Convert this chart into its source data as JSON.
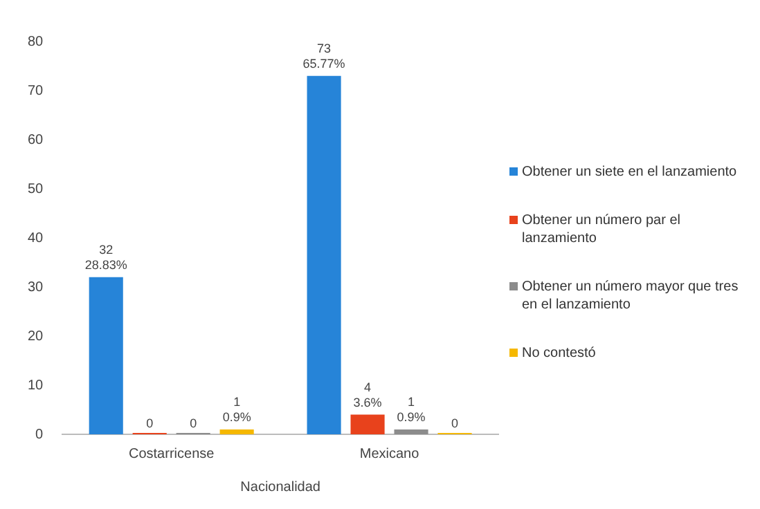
{
  "chart_data": {
    "type": "bar",
    "xlabel": "Nacionalidad",
    "categories": [
      "Costarricense",
      "Mexicano"
    ],
    "series": [
      {
        "name": "Obtener un siete en el lanzamiento",
        "color": "#2684d8",
        "values": [
          32,
          73
        ],
        "value_labels": [
          "32\n28.83%",
          "73\n65.77%"
        ]
      },
      {
        "name": "Obtener un número par el lanzamiento",
        "color": "#e8421c",
        "values": [
          0,
          4
        ],
        "value_labels": [
          "0",
          "4\n3.6%"
        ]
      },
      {
        "name": "Obtener un número mayor que tres en el lanzamiento",
        "color": "#8c8c8c",
        "values": [
          0,
          1
        ],
        "value_labels": [
          "0",
          "1\n0.9%"
        ]
      },
      {
        "name": "No contestó",
        "color": "#f5b800",
        "values": [
          1,
          0
        ],
        "value_labels": [
          "1\n0.9%",
          "0"
        ]
      }
    ],
    "ylim": [
      0,
      80
    ],
    "yticks": [
      0,
      10,
      20,
      30,
      40,
      50,
      60,
      70,
      80
    ],
    "grid": false,
    "legend": "right"
  }
}
